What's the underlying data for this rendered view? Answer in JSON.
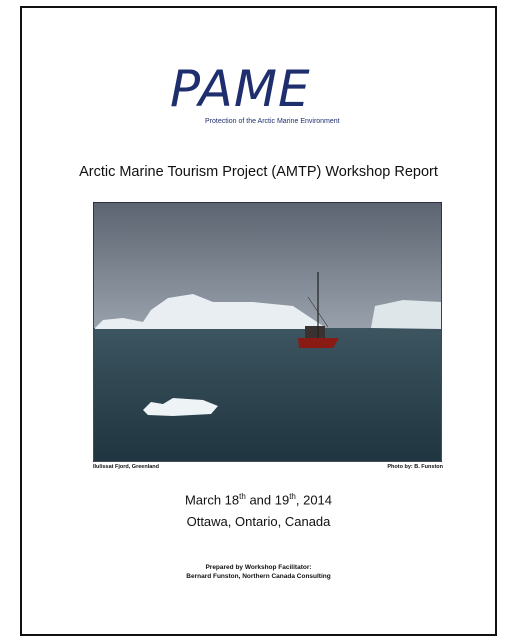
{
  "logo": {
    "mark": "PAME",
    "tagline": "Protection of the Arctic Marine Environment"
  },
  "title": "Arctic Marine Tourism Project (AMTP) Workshop Report",
  "photo": {
    "caption": "Ilulissat Fjord, Greenland",
    "credit": "Photo by:  B. Funston"
  },
  "date": {
    "parts": [
      "March 18",
      "th",
      " and 19",
      "th",
      ", 2014"
    ]
  },
  "location": "Ottawa, Ontario, Canada",
  "prepared": {
    "line1": "Prepared by Workshop Facilitator:",
    "line2": "Bernard Funston, Northern Canada Consulting"
  }
}
